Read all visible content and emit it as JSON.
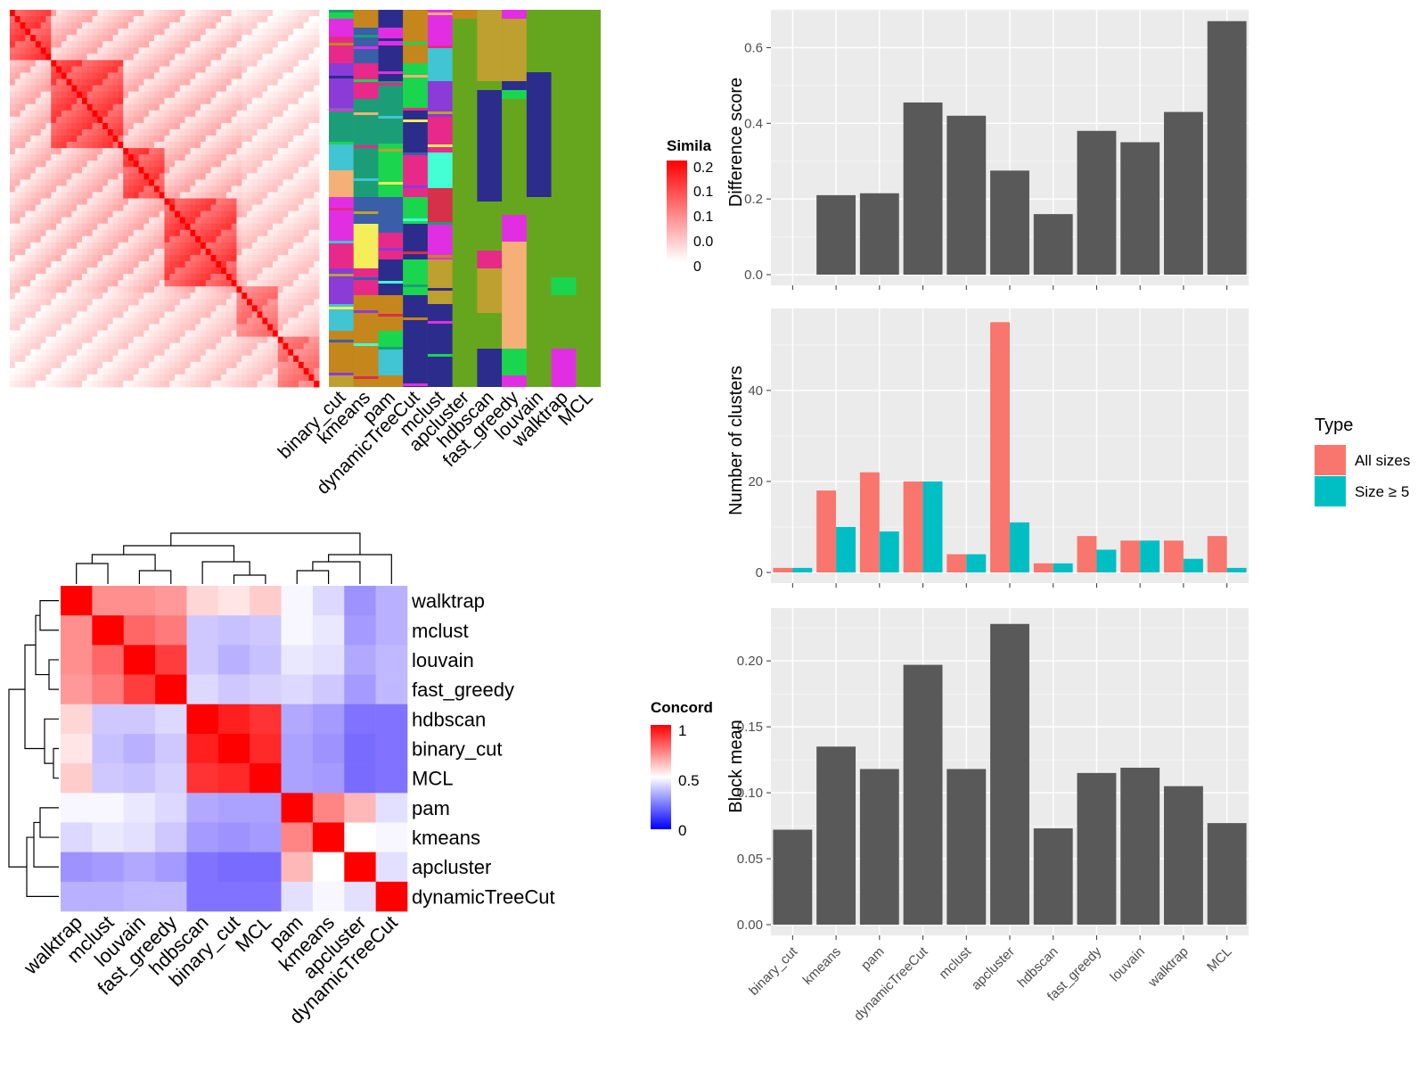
{
  "chart_data": [
    {
      "type": "heatmap",
      "panel": "similarity-matrix",
      "legend": {
        "title": "Simila",
        "ticks": [
          "0.2",
          "0.1",
          "0.1",
          "0.0",
          "0"
        ]
      },
      "membership_columns": [
        "binary_cut",
        "kmeans",
        "pam",
        "dynamicTreeCut",
        "mclust",
        "apcluster",
        "hdbscan",
        "fast_greedy",
        "louvain",
        "walktrap",
        "MCL"
      ]
    },
    {
      "type": "heatmap",
      "panel": "concordance",
      "legend": {
        "title": "Concord",
        "ticks": [
          "1",
          "0.5",
          "0"
        ]
      },
      "row_labels": [
        "walktrap",
        "mclust",
        "louvain",
        "fast_greedy",
        "hdbscan",
        "binary_cut",
        "MCL",
        "pam",
        "kmeans",
        "apcluster",
        "dynamicTreeCut"
      ],
      "col_labels": [
        "walktrap",
        "mclust",
        "louvain",
        "fast_greedy",
        "hdbscan",
        "binary_cut",
        "MCL",
        "pam",
        "kmeans",
        "apcluster",
        "dynamicTreeCut"
      ],
      "values": [
        [
          1.0,
          0.72,
          0.72,
          0.7,
          0.58,
          0.55,
          0.6,
          0.48,
          0.4,
          0.22,
          0.3
        ],
        [
          0.72,
          1.0,
          0.8,
          0.76,
          0.36,
          0.34,
          0.36,
          0.48,
          0.44,
          0.24,
          0.3
        ],
        [
          0.72,
          0.8,
          1.0,
          0.88,
          0.36,
          0.3,
          0.34,
          0.44,
          0.42,
          0.28,
          0.32
        ],
        [
          0.7,
          0.76,
          0.88,
          1.0,
          0.4,
          0.36,
          0.38,
          0.4,
          0.36,
          0.24,
          0.32
        ],
        [
          0.58,
          0.36,
          0.36,
          0.4,
          1.0,
          0.94,
          0.9,
          0.28,
          0.24,
          0.14,
          0.14
        ],
        [
          0.55,
          0.34,
          0.3,
          0.36,
          0.94,
          1.0,
          0.92,
          0.26,
          0.22,
          0.12,
          0.14
        ],
        [
          0.6,
          0.36,
          0.34,
          0.38,
          0.9,
          0.92,
          1.0,
          0.26,
          0.24,
          0.12,
          0.14
        ],
        [
          0.48,
          0.48,
          0.44,
          0.4,
          0.28,
          0.26,
          0.26,
          1.0,
          0.74,
          0.64,
          0.42
        ],
        [
          0.4,
          0.44,
          0.42,
          0.36,
          0.24,
          0.22,
          0.24,
          0.74,
          1.0,
          0.5,
          0.48
        ],
        [
          0.22,
          0.24,
          0.28,
          0.24,
          0.14,
          0.12,
          0.12,
          0.64,
          0.5,
          1.0,
          0.42
        ],
        [
          0.3,
          0.3,
          0.32,
          0.32,
          0.14,
          0.14,
          0.14,
          0.42,
          0.48,
          0.42,
          1.0
        ]
      ]
    },
    {
      "type": "bar",
      "panel": "difference-score",
      "categories": [
        "binary_cut",
        "kmeans",
        "pam",
        "dynamicTreeCut",
        "mclust",
        "apcluster",
        "hdbscan",
        "fast_greedy",
        "louvain",
        "walktrap",
        "MCL"
      ],
      "values": [
        0.0,
        0.21,
        0.215,
        0.455,
        0.42,
        0.275,
        0.16,
        0.38,
        0.35,
        0.43,
        0.67
      ],
      "ylabel": "Difference score",
      "ylim": [
        0,
        0.7
      ],
      "yticks": [
        "0.0",
        "0.2",
        "0.4",
        "0.6"
      ],
      "yticks_values": [
        0,
        0.2,
        0.4,
        0.6
      ],
      "color": "#595959"
    },
    {
      "type": "bar",
      "panel": "number-of-clusters",
      "categories": [
        "binary_cut",
        "kmeans",
        "pam",
        "dynamicTreeCut",
        "mclust",
        "apcluster",
        "hdbscan",
        "fast_greedy",
        "louvain",
        "walktrap",
        "MCL"
      ],
      "series": [
        {
          "name": "All sizes",
          "color": "#F8766D",
          "values": [
            1,
            18,
            22,
            20,
            4,
            55,
            2,
            8,
            7,
            7,
            8
          ]
        },
        {
          "name": "Size ≥ 5",
          "color": "#00BFC4",
          "values": [
            1,
            10,
            9,
            20,
            4,
            11,
            2,
            5,
            7,
            3,
            1
          ]
        }
      ],
      "ylabel": "Number of clusters",
      "ylim": [
        0,
        58
      ],
      "yticks": [
        "0",
        "20",
        "40"
      ],
      "yticks_values": [
        0,
        20,
        40
      ],
      "legend": {
        "title": "Type",
        "placement": "right"
      }
    },
    {
      "type": "bar",
      "panel": "block-mean",
      "categories": [
        "binary_cut",
        "kmeans",
        "pam",
        "dynamicTreeCut",
        "mclust",
        "apcluster",
        "hdbscan",
        "fast_greedy",
        "louvain",
        "walktrap",
        "MCL"
      ],
      "values": [
        0.072,
        0.135,
        0.118,
        0.197,
        0.118,
        0.228,
        0.073,
        0.115,
        0.119,
        0.105,
        0.077
      ],
      "ylabel": "Block mean",
      "ylim": [
        0,
        0.24
      ],
      "yticks": [
        "0.00",
        "0.05",
        "0.10",
        "0.15",
        "0.20"
      ],
      "yticks_values": [
        0,
        0.05,
        0.1,
        0.15,
        0.2
      ],
      "color": "#595959"
    }
  ],
  "colors": {
    "panel_bg": "#EBEBEB",
    "grid": "#FFFFFF",
    "bar_gray": "#595959",
    "heat_red": "#FF0000",
    "heat_blue": "#0000FF",
    "membership_bg": "#66A61E"
  }
}
